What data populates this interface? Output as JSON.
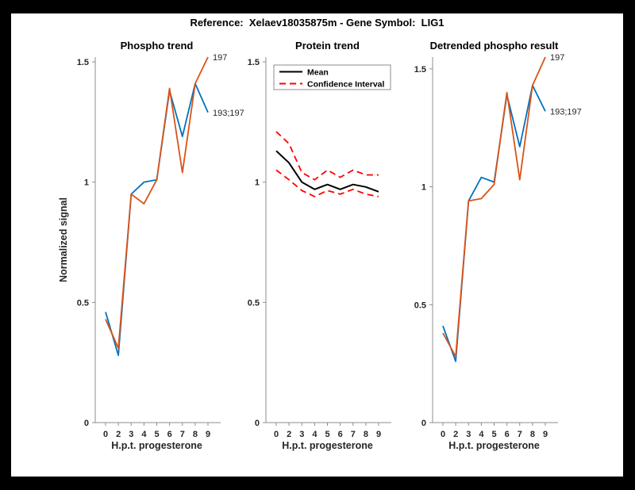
{
  "figure_title": "Reference:  Xelaev18035875m - Gene Symbol:  LIG1",
  "colors": {
    "blue": "#0072BD",
    "orange": "#D95319",
    "red": "#FF0000",
    "black": "#000000",
    "axis_line": "#8c8c8c",
    "tick_text": "#262626",
    "background": "#000000",
    "canvas": "#FFFFFF"
  },
  "chart_data": [
    {
      "id": "phospho-trend",
      "type": "line",
      "title": "Phospho trend",
      "xlabel": "H.p.t. progesterone",
      "ylabel": "Normalized signal",
      "categories": [
        "0",
        "2",
        "3",
        "4",
        "5",
        "6",
        "7",
        "8",
        "9"
      ],
      "ylim": [
        0,
        1.52
      ],
      "yticks": [
        "0",
        "0.5",
        "1",
        "1.5"
      ],
      "grid": false,
      "series": [
        {
          "name": "193;197",
          "color_key": "blue",
          "line": "solid",
          "values": [
            0.46,
            0.28,
            0.95,
            1.0,
            1.01,
            1.38,
            1.19,
            1.41,
            1.29
          ],
          "end_label": "193;197"
        },
        {
          "name": "197",
          "color_key": "orange",
          "line": "solid",
          "values": [
            0.43,
            0.31,
            0.95,
            0.91,
            1.01,
            1.39,
            1.04,
            1.41,
            1.52
          ],
          "end_label": "197"
        }
      ]
    },
    {
      "id": "protein-trend",
      "type": "line",
      "title": "Protein trend",
      "xlabel": "H.p.t. progesterone",
      "ylabel": "",
      "categories": [
        "0",
        "2",
        "3",
        "4",
        "5",
        "6",
        "7",
        "8",
        "9"
      ],
      "ylim": [
        0,
        1.52
      ],
      "yticks": [
        "0",
        "0.5",
        "1",
        "1.5"
      ],
      "grid": false,
      "legend": {
        "position": "top-left",
        "entries": [
          {
            "label": "Mean",
            "color_key": "black",
            "line": "solid"
          },
          {
            "label": "Confidence Interval",
            "color_key": "red",
            "line": "dashed"
          }
        ]
      },
      "series": [
        {
          "name": "Mean",
          "color_key": "black",
          "line": "solid",
          "values": [
            1.13,
            1.08,
            1.0,
            0.97,
            0.99,
            0.97,
            0.99,
            0.98,
            0.96
          ]
        },
        {
          "name": "Confidence Interval upper",
          "color_key": "red",
          "line": "dashed",
          "values": [
            1.21,
            1.16,
            1.04,
            1.01,
            1.05,
            1.02,
            1.05,
            1.03,
            1.03
          ]
        },
        {
          "name": "Confidence Interval lower",
          "color_key": "red",
          "line": "dashed",
          "values": [
            1.05,
            1.01,
            0.965,
            0.94,
            0.965,
            0.95,
            0.97,
            0.95,
            0.94
          ]
        }
      ]
    },
    {
      "id": "detrended-phospho",
      "type": "line",
      "title": "Detrended phospho result",
      "xlabel": "H.p.t. progesterone",
      "ylabel": "",
      "categories": [
        "0",
        "2",
        "3",
        "4",
        "5",
        "6",
        "7",
        "8",
        "9"
      ],
      "ylim": [
        0,
        1.55
      ],
      "yticks": [
        "0",
        "0.5",
        "1",
        "1.5"
      ],
      "grid": false,
      "series": [
        {
          "name": "193;197",
          "color_key": "blue",
          "line": "solid",
          "values": [
            0.41,
            0.26,
            0.94,
            1.04,
            1.02,
            1.39,
            1.17,
            1.43,
            1.32
          ],
          "end_label": "193;197"
        },
        {
          "name": "197",
          "color_key": "orange",
          "line": "solid",
          "values": [
            0.38,
            0.28,
            0.94,
            0.95,
            1.01,
            1.4,
            1.03,
            1.43,
            1.55
          ],
          "end_label": "197"
        }
      ]
    }
  ]
}
